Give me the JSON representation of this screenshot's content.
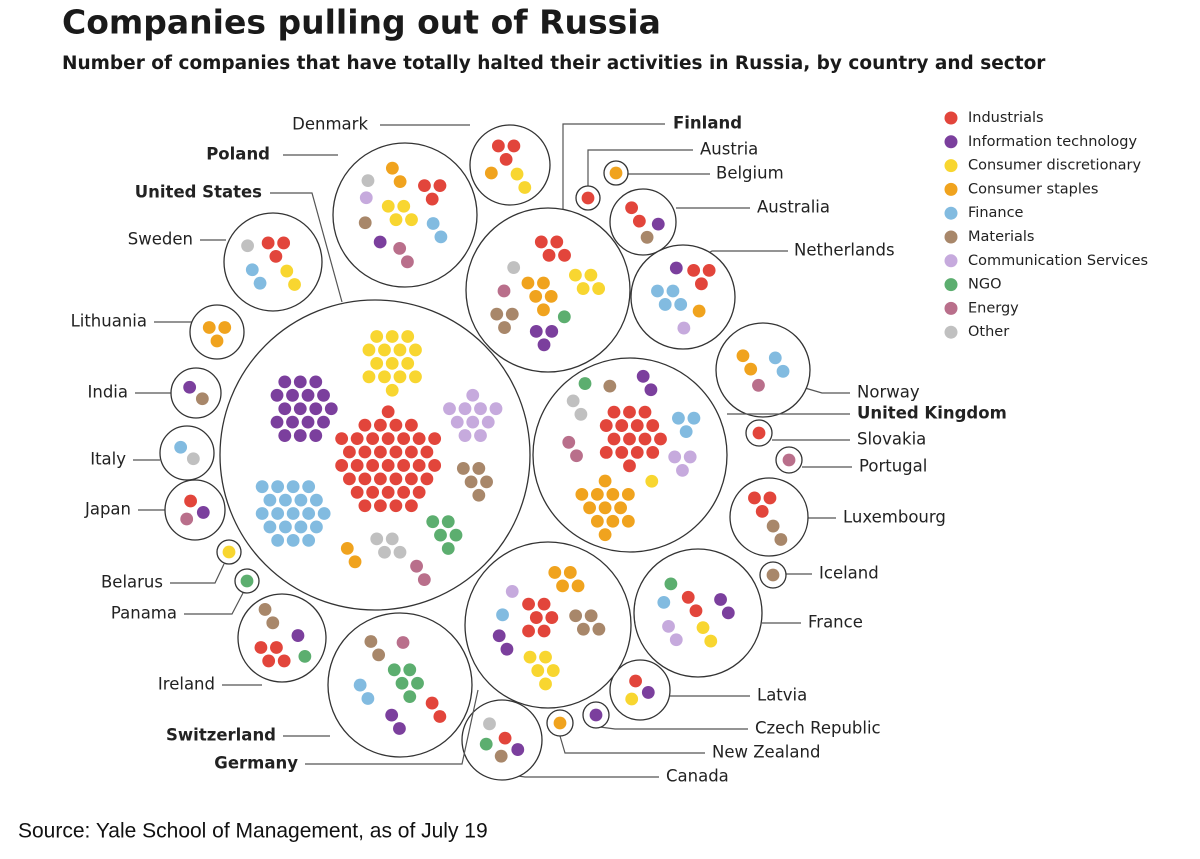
{
  "chart_data": {
    "type": "packed-dots",
    "title": "Companies pulling out of Russia",
    "subtitle": "Number of companies that have totally halted their activities in Russia, by country and sector",
    "source": "Source: Yale School of Management, as of July 19",
    "categories": [
      "Denmark",
      "Finland",
      "Austria",
      "Belgium",
      "Australia",
      "Netherlands",
      "Norway",
      "United Kingdom",
      "Slovakia",
      "Portugal",
      "Luxembourg",
      "Iceland",
      "France",
      "Latvia",
      "Czech Republic",
      "New Zealand",
      "Canada",
      "Germany",
      "Switzerland",
      "Ireland",
      "Panama",
      "Belarus",
      "Japan",
      "Italy",
      "India",
      "Lithuania",
      "Sweden",
      "United States",
      "Poland"
    ],
    "bold": [
      1,
      7,
      17,
      18,
      27,
      28
    ],
    "series": [
      {
        "name": "Industrials",
        "color": "#e2453b",
        "values": [
          3,
          4,
          1,
          0,
          2,
          3,
          0,
          16,
          1,
          0,
          3,
          0,
          2,
          1,
          0,
          0,
          1,
          6,
          2,
          4,
          0,
          0,
          1,
          0,
          0,
          0,
          3,
          40,
          3
        ]
      },
      {
        "name": "Information technology",
        "color": "#7b3f9d",
        "values": [
          0,
          3,
          0,
          0,
          1,
          1,
          0,
          2,
          0,
          0,
          0,
          0,
          2,
          1,
          1,
          0,
          1,
          2,
          2,
          1,
          0,
          0,
          1,
          0,
          1,
          0,
          0,
          18,
          1
        ]
      },
      {
        "name": "Consumer discretionary",
        "color": "#f8d630",
        "values": [
          2,
          4,
          0,
          0,
          0,
          0,
          0,
          1,
          0,
          0,
          0,
          0,
          2,
          1,
          0,
          0,
          0,
          5,
          0,
          0,
          0,
          1,
          0,
          0,
          0,
          0,
          2,
          15,
          4
        ]
      },
      {
        "name": "Consumer staples",
        "color": "#f0a31e",
        "values": [
          1,
          5,
          0,
          1,
          0,
          1,
          2,
          12,
          0,
          0,
          0,
          0,
          0,
          0,
          0,
          1,
          0,
          4,
          0,
          0,
          0,
          0,
          0,
          0,
          0,
          3,
          0,
          2,
          2
        ]
      },
      {
        "name": "Finance",
        "color": "#82bbe0",
        "values": [
          0,
          0,
          0,
          0,
          0,
          4,
          2,
          3,
          0,
          0,
          0,
          0,
          1,
          0,
          0,
          0,
          0,
          1,
          2,
          0,
          0,
          0,
          0,
          1,
          0,
          0,
          2,
          20,
          2
        ]
      },
      {
        "name": "Materials",
        "color": "#a8876a",
        "values": [
          0,
          3,
          0,
          0,
          1,
          0,
          0,
          1,
          0,
          0,
          2,
          1,
          0,
          0,
          0,
          0,
          1,
          4,
          2,
          2,
          0,
          0,
          0,
          0,
          1,
          0,
          0,
          5,
          1
        ]
      },
      {
        "name": "Communication Services",
        "color": "#c6aadd",
        "values": [
          0,
          0,
          0,
          0,
          0,
          1,
          0,
          3,
          0,
          0,
          0,
          0,
          2,
          0,
          0,
          0,
          0,
          1,
          0,
          0,
          0,
          0,
          0,
          0,
          0,
          0,
          0,
          10,
          1
        ]
      },
      {
        "name": "NGO",
        "color": "#5cae6f",
        "values": [
          0,
          1,
          0,
          0,
          0,
          0,
          0,
          1,
          0,
          0,
          0,
          0,
          1,
          0,
          0,
          0,
          1,
          0,
          5,
          1,
          1,
          0,
          0,
          0,
          0,
          0,
          0,
          5,
          0
        ]
      },
      {
        "name": "Energy",
        "color": "#b96f8b",
        "values": [
          0,
          1,
          0,
          0,
          0,
          0,
          1,
          2,
          0,
          1,
          0,
          0,
          0,
          0,
          0,
          0,
          0,
          0,
          1,
          0,
          0,
          0,
          1,
          0,
          0,
          0,
          0,
          2,
          2
        ]
      },
      {
        "name": "Other",
        "color": "#c0c0c0",
        "values": [
          0,
          1,
          0,
          0,
          0,
          0,
          0,
          2,
          0,
          0,
          0,
          0,
          0,
          0,
          0,
          0,
          1,
          0,
          0,
          0,
          0,
          0,
          0,
          1,
          0,
          0,
          1,
          4,
          1
        ]
      }
    ]
  }
}
